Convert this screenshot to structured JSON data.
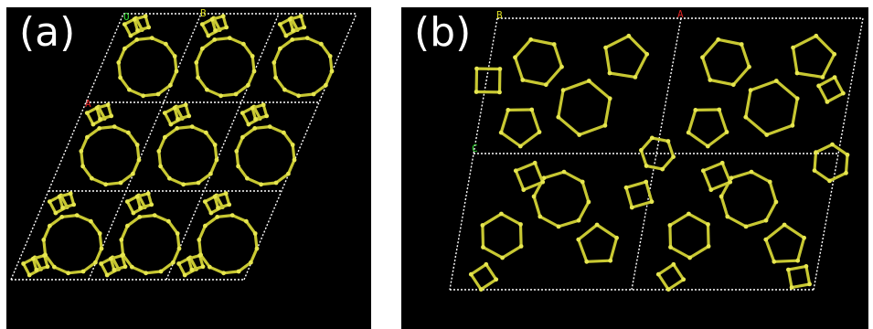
{
  "panels": [
    {
      "id": "a",
      "label": "(a)",
      "axes": [
        {
          "text": "O",
          "color": "#33dd33"
        },
        {
          "text": "B",
          "color": "#dddd22"
        },
        {
          "text": "A",
          "color": "#dd2222"
        }
      ]
    },
    {
      "id": "b",
      "label": "(b)",
      "axes": [
        {
          "text": "B",
          "color": "#dddd22"
        },
        {
          "text": "A",
          "color": "#dd2222"
        },
        {
          "text": "C",
          "color": "#33dd33"
        }
      ]
    }
  ],
  "colors": {
    "background": "#000000",
    "bonds": "#c8c832",
    "atoms": "#e6e650",
    "cell_lines": "#ffffff"
  }
}
